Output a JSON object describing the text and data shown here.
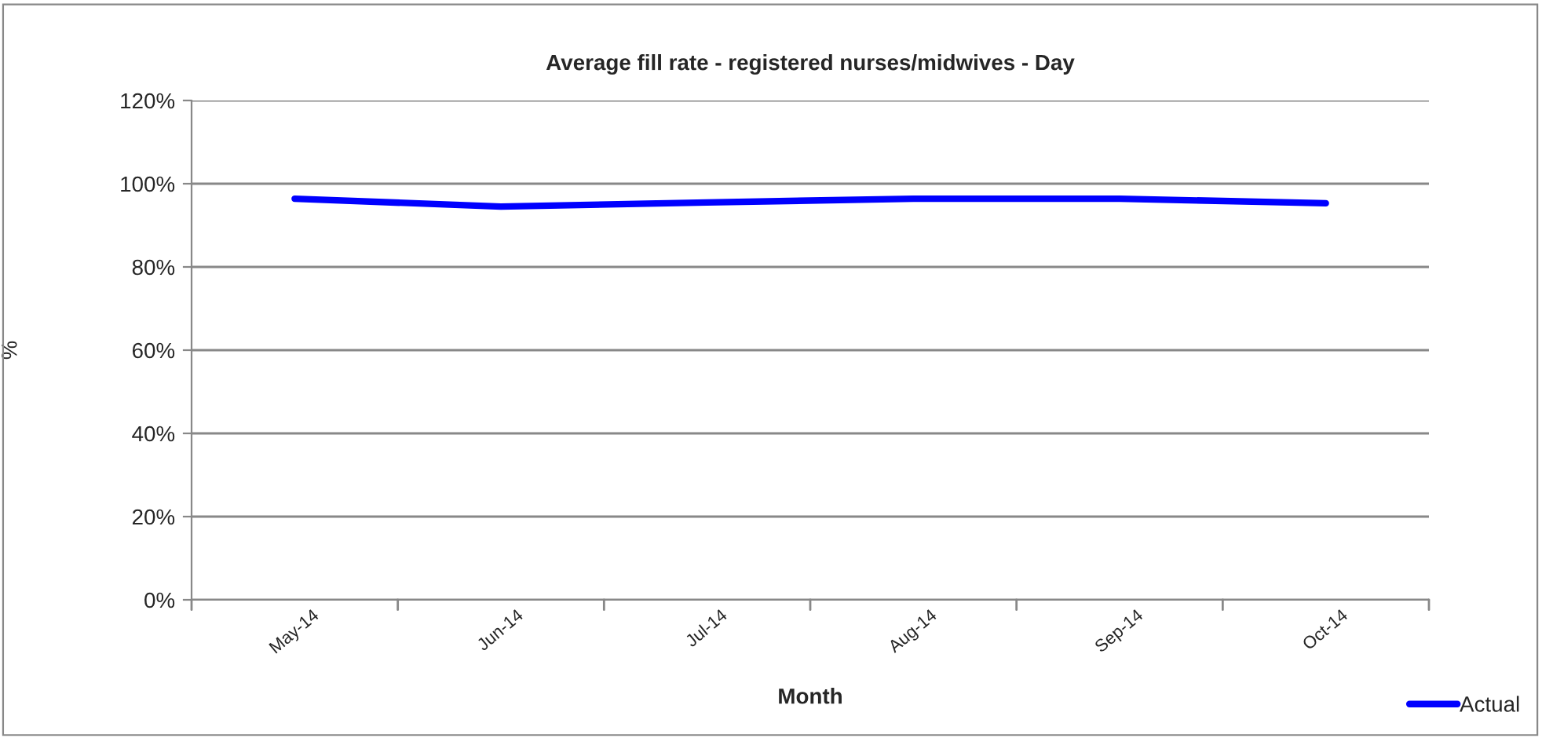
{
  "chart_data": {
    "type": "line",
    "title": "Average fill rate - registered nurses/midwives - Day",
    "xlabel": "Month",
    "ylabel": "%",
    "categories": [
      "May-14",
      "Jun-14",
      "Jul-14",
      "Aug-14",
      "Sep-14",
      "Oct-14"
    ],
    "series": [
      {
        "name": "Actual",
        "color": "#0000ff",
        "values": [
          96.4,
          94.5,
          95.5,
          96.4,
          96.4,
          95.3
        ]
      }
    ],
    "ylim": [
      0,
      120
    ],
    "yticks": [
      {
        "value": 0,
        "label": "0%"
      },
      {
        "value": 20,
        "label": "20%"
      },
      {
        "value": 40,
        "label": "40%"
      },
      {
        "value": 60,
        "label": "60%"
      },
      {
        "value": 80,
        "label": "80%"
      },
      {
        "value": 100,
        "label": "100%"
      },
      {
        "value": 120,
        "label": "120%"
      }
    ],
    "grid": "y",
    "legend": "bottom right",
    "marker": "none",
    "line_style": "solid"
  }
}
